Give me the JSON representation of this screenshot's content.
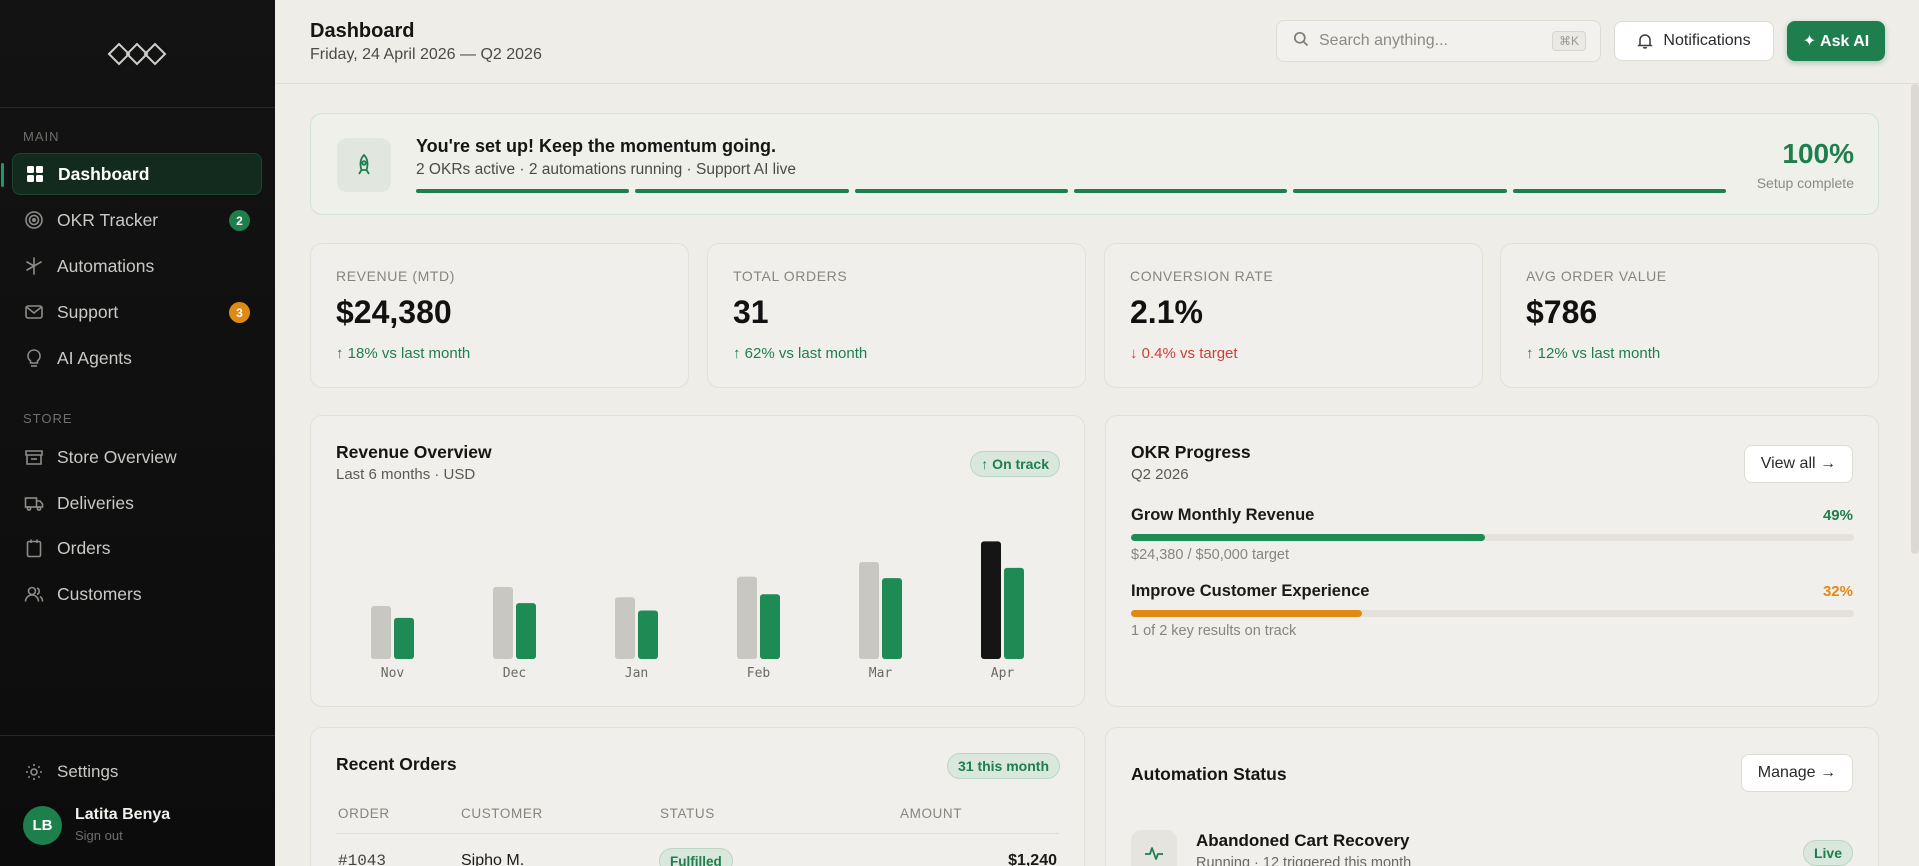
{
  "sidebar": {
    "section_main": "MAIN",
    "section_store": "STORE",
    "main_items": [
      {
        "label": "Dashboard",
        "icon": "grid-icon",
        "active": true
      },
      {
        "label": "OKR Tracker",
        "icon": "target-icon",
        "badge": "2"
      },
      {
        "label": "Automations",
        "icon": "sparkle-icon"
      },
      {
        "label": "Support",
        "icon": "mail-icon",
        "badge": "3"
      },
      {
        "label": "AI Agents",
        "icon": "bulb-icon"
      }
    ],
    "store_items": [
      {
        "label": "Store Overview",
        "icon": "store-icon"
      },
      {
        "label": "Deliveries",
        "icon": "truck-icon"
      },
      {
        "label": "Orders",
        "icon": "clipboard-icon"
      },
      {
        "label": "Customers",
        "icon": "users-icon"
      }
    ],
    "settings_label": "Settings",
    "user": {
      "initials": "LB",
      "name": "Latita Benya",
      "sub": "Sign out"
    }
  },
  "header": {
    "title": "Dashboard",
    "subtitle": "Friday, 24 April 2026 — Q2 2026",
    "search_placeholder": "Search anything...",
    "search_kbd": "⌘K",
    "notifications_label": "Notifications",
    "ask_ai_label": "✦ Ask AI"
  },
  "setup": {
    "title": "You're set up! Keep the momentum going.",
    "subtitle": "2 OKRs active · 2 automations running · Support AI live",
    "percent": "100%",
    "percent_label": "Setup complete",
    "steps_complete": 6,
    "steps_total": 6
  },
  "stats": [
    {
      "label": "REVENUE (MTD)",
      "value": "$24,380",
      "delta": "↑ 18% vs last month",
      "direction": "up"
    },
    {
      "label": "TOTAL ORDERS",
      "value": "31",
      "delta": "↑ 62% vs last month",
      "direction": "up"
    },
    {
      "label": "CONVERSION RATE",
      "value": "2.1%",
      "delta": "↓ 0.4% vs target",
      "direction": "down"
    },
    {
      "label": "AVG ORDER VALUE",
      "value": "$786",
      "delta": "↑ 12% vs last month",
      "direction": "up"
    }
  ],
  "revenue": {
    "title": "Revenue Overview",
    "subtitle": "Last 6 months · USD",
    "badge": "↑ On track"
  },
  "chart_data": {
    "type": "bar",
    "categories": [
      "Nov",
      "Dec",
      "Jan",
      "Feb",
      "Mar",
      "Apr"
    ],
    "series": [
      {
        "values": [
          36,
          49,
          42,
          56,
          66,
          80
        ]
      },
      {
        "values": [
          28,
          38,
          33,
          44,
          55,
          62
        ]
      }
    ],
    "ylim": [
      0,
      85
    ],
    "colors": {
      "series_a": "#c9c7c2",
      "series_a_highlight": "#151515",
      "series_b": "#1e8a54"
    },
    "highlight_category": "Apr",
    "grid": false
  },
  "okr": {
    "title": "OKR Progress",
    "subtitle": "Q2 2026",
    "view_all": "View all →",
    "items": [
      {
        "name": "Grow Monthly Revenue",
        "percent": "49%",
        "progress": 0.49,
        "sub": "$24,380 / $50,000 target",
        "color": "#1e8a54"
      },
      {
        "name": "Improve Customer Experience",
        "percent": "32%",
        "progress": 0.32,
        "sub": "1 of 2 key results on track",
        "color": "#e08a14"
      }
    ]
  },
  "orders": {
    "title": "Recent Orders",
    "badge": "31 this month",
    "columns": [
      "ORDER",
      "CUSTOMER",
      "STATUS",
      "AMOUNT"
    ],
    "rows": [
      {
        "order": "#1043",
        "customer": "Sipho M.",
        "status": "Fulfilled",
        "amount": "$1,240"
      }
    ]
  },
  "automation": {
    "title": "Automation Status",
    "manage": "Manage →",
    "items": [
      {
        "name": "Abandoned Cart Recovery",
        "sub": "Running · 12 triggered this month",
        "status": "Live"
      }
    ]
  }
}
